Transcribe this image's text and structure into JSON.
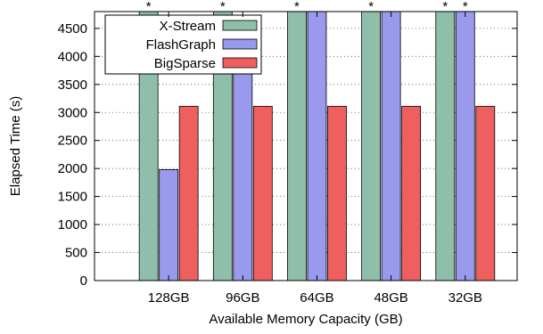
{
  "chart_data": {
    "type": "bar",
    "xlabel": "Available Memory Capacity (GB)",
    "ylabel": "Elapsed Time (s)",
    "ylim": [
      0,
      4800
    ],
    "yticks": [
      0,
      500,
      1000,
      1500,
      2000,
      2500,
      3000,
      3500,
      4000,
      4500
    ],
    "grid": true,
    "legend_position": "top-left",
    "categories": [
      "128GB",
      "96GB",
      "64GB",
      "48GB",
      "32GB"
    ],
    "series": [
      {
        "name": "X-Stream",
        "color": "#8fbfaa",
        "values": [
          4800,
          4800,
          4800,
          4800,
          4800
        ],
        "markers": [
          "*",
          "*",
          "*",
          "*",
          "*"
        ]
      },
      {
        "name": "FlashGraph",
        "color": "#9999ee",
        "values": [
          1980,
          3700,
          4800,
          4800,
          4800
        ],
        "markers": [
          "",
          "",
          "",
          "",
          "*"
        ]
      },
      {
        "name": "BigSparse",
        "color": "#ee5f5f",
        "values": [
          3110,
          3110,
          3110,
          3110,
          3110
        ],
        "markers": [
          "",
          "",
          "",
          "",
          ""
        ]
      }
    ]
  }
}
